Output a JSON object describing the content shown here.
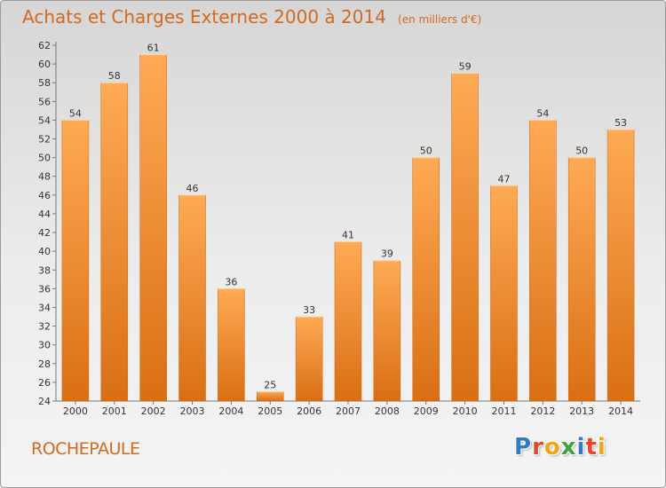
{
  "header": {
    "title": "Achats et Charges Externes 2000 à 2014",
    "subtitle": "(en milliers d'€)"
  },
  "footer": {
    "commune": "ROCHEPAULE",
    "brand": {
      "text": "Proxiti",
      "letters": [
        {
          "char": "P",
          "color": "#2e7cc4"
        },
        {
          "char": "r",
          "color": "#e8462a"
        },
        {
          "char": "o",
          "color": "#f2a516"
        },
        {
          "char": "x",
          "color": "#3da33a"
        },
        {
          "char": "i",
          "color": "#2e7cc4"
        },
        {
          "char": "t",
          "color": "#e8462a"
        },
        {
          "char": "i",
          "color": "#f2a516"
        }
      ]
    }
  },
  "colors": {
    "accent": "#d2691e",
    "bar_light": "#ffaa55",
    "bar_dark": "#d96f14"
  },
  "chart_data": {
    "type": "bar",
    "title": "Achats et Charges Externes 2000 à 2014",
    "subtitle": "(en milliers d'€)",
    "categories": [
      "2000",
      "2001",
      "2002",
      "2003",
      "2004",
      "2005",
      "2006",
      "2007",
      "2008",
      "2009",
      "2010",
      "2011",
      "2012",
      "2013",
      "2014"
    ],
    "values": [
      54,
      58,
      61,
      46,
      36,
      25,
      33,
      41,
      39,
      50,
      59,
      47,
      54,
      50,
      53
    ],
    "ylim": [
      24,
      62
    ],
    "yticks": [
      24,
      26,
      28,
      30,
      32,
      34,
      36,
      38,
      40,
      42,
      44,
      46,
      48,
      50,
      52,
      54,
      56,
      58,
      60,
      62
    ],
    "grid": false,
    "data_labels": true
  }
}
